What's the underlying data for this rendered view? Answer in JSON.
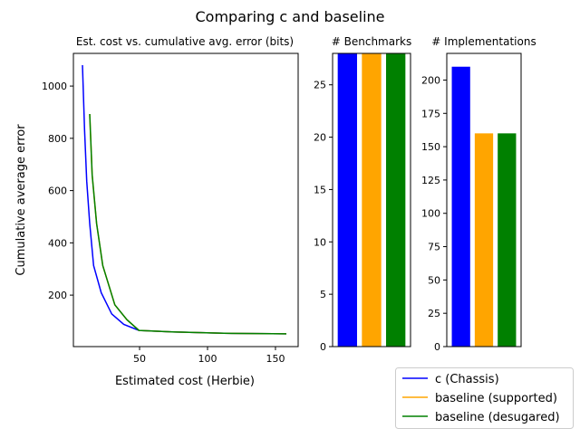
{
  "suptitle": "Comparing c and baseline",
  "colors": {
    "c": "#0000ff",
    "supported": "#ffa500",
    "desugared": "#008000"
  },
  "legend": {
    "placement": "bottom-right",
    "entries": [
      "c (Chassis)",
      "baseline (supported)",
      "baseline (desugared)"
    ]
  },
  "chart_data": [
    {
      "type": "line",
      "title": "Est. cost vs. cumulative avg. error (bits)",
      "xlabel": "Estimated cost (Herbie)",
      "ylabel": "Cumulative average error",
      "xlim": [
        1.3,
        166.7
      ],
      "ylim": [
        3,
        1125
      ],
      "xticks": [
        50,
        100,
        150
      ],
      "yticks": [
        200,
        400,
        600,
        800,
        1000
      ],
      "series": [
        {
          "name": "c (Chassis)",
          "x": [
            8,
            9.5,
            11.1,
            13.3,
            16.2,
            21.8,
            29.5,
            38.4,
            49.5,
            74,
            112,
            158
          ],
          "y": [
            1080,
            833,
            636,
            474,
            313,
            209,
            128,
            88,
            65,
            59,
            54,
            52
          ]
        },
        {
          "name": "baseline (supported)",
          "x": [
            13.3,
            15.1,
            18.4,
            22.9,
            31.8,
            40.7,
            49.5,
            74,
            112,
            158
          ],
          "y": [
            893,
            660,
            474,
            313,
            163,
            106,
            65,
            59,
            54,
            52
          ]
        },
        {
          "name": "baseline (desugared)",
          "x": [
            13.3,
            15.1,
            18.4,
            22.9,
            31.8,
            40.7,
            49.5,
            74,
            112,
            158
          ],
          "y": [
            893,
            660,
            474,
            313,
            163,
            106,
            65,
            59,
            54,
            52
          ]
        }
      ]
    },
    {
      "type": "bar",
      "title": "# Benchmarks",
      "categories": [
        "c (Chassis)",
        "baseline (supported)",
        "baseline (desugared)"
      ],
      "values": [
        28,
        28,
        28
      ],
      "ylim": [
        0,
        28
      ],
      "yticks": [
        0,
        5,
        10,
        15,
        20,
        25
      ]
    },
    {
      "type": "bar",
      "title": "# Implementations",
      "categories": [
        "c (Chassis)",
        "baseline (supported)",
        "baseline (desugared)"
      ],
      "values": [
        210,
        160,
        160
      ],
      "ylim": [
        0,
        220
      ],
      "yticks": [
        0,
        25,
        50,
        75,
        100,
        125,
        150,
        175,
        200
      ]
    }
  ]
}
